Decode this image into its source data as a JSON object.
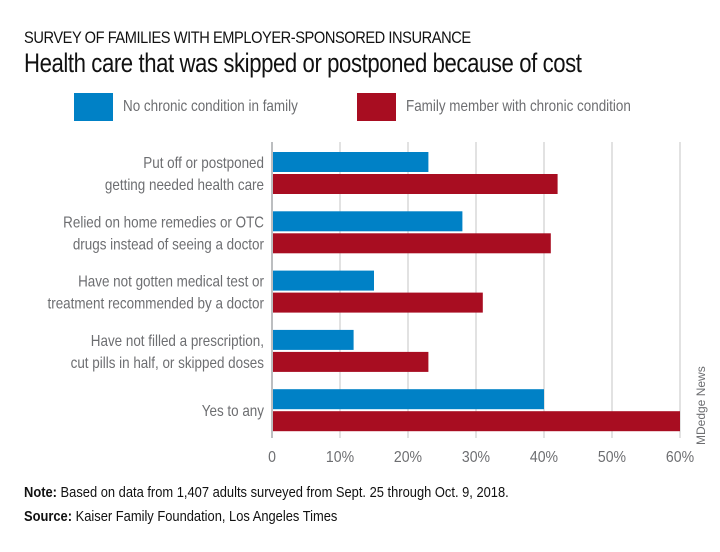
{
  "header": {
    "kicker": "SURVEY OF FAMILIES WITH EMPLOYER-SPONSORED INSURANCE",
    "title": "Health care that was skipped or postponed because of cost"
  },
  "legend": [
    {
      "label": "No chronic condition in family",
      "color": "#0081c6"
    },
    {
      "label": "Family member with chronic condition",
      "color": "#a80d21"
    }
  ],
  "footer": {
    "note_label": "Note:",
    "note_text": " Based on data from 1,407 adults surveyed from Sept. 25 through Oct. 9, 2018.",
    "source_label": "Source:",
    "source_text": " Kaiser Family Foundation, Los Angeles Times",
    "credit": "MDedge News"
  },
  "chart_data": {
    "type": "bar",
    "orientation": "horizontal",
    "title": "Health care that was skipped or postponed because of cost",
    "subtitle": "SURVEY OF FAMILIES WITH EMPLOYER-SPONSORED INSURANCE",
    "categories": [
      [
        "Put off or postponed",
        "getting needed health care"
      ],
      [
        "Relied on home remedies or OTC",
        "drugs instead of seeing a doctor"
      ],
      [
        "Have not gotten medical test or",
        "treatment recommended by a doctor"
      ],
      [
        "Have not filled a prescription,",
        "cut pills in half, or skipped doses"
      ],
      [
        "Yes to any"
      ]
    ],
    "series": [
      {
        "name": "No chronic condition in family",
        "color": "#0081c6",
        "values": [
          23,
          28,
          15,
          12,
          40
        ]
      },
      {
        "name": "Family member with chronic condition",
        "color": "#a80d21",
        "values": [
          42,
          41,
          31,
          23,
          60
        ]
      }
    ],
    "xlabel": "",
    "ylabel": "",
    "xlim": [
      0,
      60
    ],
    "xticks": [
      0,
      10,
      20,
      30,
      40,
      50,
      60
    ],
    "xtick_labels": [
      "0",
      "10%",
      "20%",
      "30%",
      "40%",
      "50%",
      "60%"
    ],
    "grid": true,
    "legend_position": "top"
  }
}
